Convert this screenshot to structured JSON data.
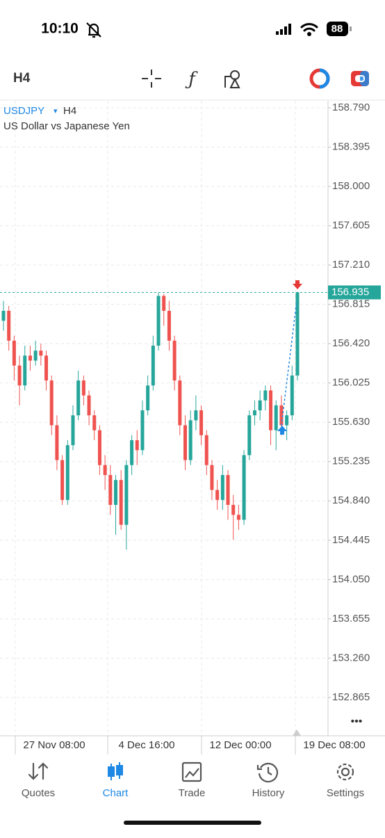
{
  "status_bar": {
    "time": "10:10",
    "battery": "88"
  },
  "toolbar": {
    "timeframe": "H4"
  },
  "chart_header": {
    "symbol": "USDJPY",
    "dropdown": "▾",
    "timeframe": "H4",
    "description": "US Dollar vs Japanese Yen"
  },
  "chart_data": {
    "type": "candlestick",
    "up_color": "#26a69a",
    "down_color": "#ef5350",
    "open": [
      156.65,
      156.75,
      156.45,
      156.2,
      156.0,
      156.3,
      156.25,
      156.35,
      156.3,
      156.05,
      155.6,
      155.25,
      154.85,
      155.4,
      155.7,
      156.05,
      155.9,
      155.7,
      155.55,
      155.2,
      155.1,
      154.8,
      155.05,
      154.6,
      155.2,
      155.45,
      155.35,
      155.75,
      156.0,
      156.4,
      156.9,
      156.75,
      156.45,
      156.05,
      155.6,
      155.25,
      155.65,
      155.75,
      155.5,
      155.2,
      154.95,
      154.85,
      155.1,
      154.8,
      154.7,
      154.65,
      155.3,
      155.7,
      155.75,
      155.85,
      155.95,
      155.55,
      155.8,
      155.6,
      155.7,
      156.1
    ],
    "high": [
      156.85,
      156.8,
      156.5,
      156.3,
      156.4,
      156.4,
      156.45,
      156.42,
      156.35,
      156.1,
      155.7,
      155.3,
      155.45,
      155.8,
      156.15,
      156.1,
      155.95,
      155.75,
      155.6,
      155.3,
      155.2,
      155.1,
      155.15,
      155.25,
      155.5,
      155.55,
      155.85,
      156.1,
      156.5,
      156.93,
      156.92,
      156.85,
      156.5,
      156.1,
      155.7,
      155.75,
      155.9,
      155.8,
      155.55,
      155.25,
      155.05,
      155.2,
      155.15,
      154.9,
      154.8,
      155.35,
      155.75,
      155.85,
      155.95,
      156.0,
      156.0,
      155.85,
      155.9,
      155.75,
      156.2,
      156.94
    ],
    "low": [
      156.55,
      156.35,
      156.05,
      155.8,
      155.95,
      156.15,
      156.2,
      156.2,
      155.95,
      155.5,
      155.15,
      154.8,
      154.8,
      155.35,
      155.65,
      155.8,
      155.6,
      155.45,
      155.1,
      154.95,
      154.7,
      154.5,
      154.55,
      154.35,
      155.1,
      155.2,
      155.3,
      155.7,
      155.95,
      156.35,
      156.6,
      156.35,
      155.95,
      155.5,
      155.15,
      155.2,
      155.55,
      155.4,
      155.1,
      154.85,
      154.75,
      154.75,
      154.65,
      154.45,
      154.55,
      154.6,
      155.25,
      155.6,
      155.65,
      155.75,
      155.4,
      155.35,
      155.5,
      155.45,
      155.65,
      156.05
    ],
    "close": [
      156.75,
      156.45,
      156.2,
      156.0,
      156.3,
      156.25,
      156.35,
      156.3,
      156.05,
      155.6,
      155.25,
      154.85,
      155.4,
      155.7,
      156.05,
      155.9,
      155.7,
      155.55,
      155.2,
      155.1,
      154.8,
      155.05,
      154.6,
      155.2,
      155.45,
      155.35,
      155.75,
      156.0,
      156.4,
      156.9,
      156.75,
      156.45,
      156.05,
      155.6,
      155.25,
      155.65,
      155.75,
      155.5,
      155.2,
      154.95,
      154.85,
      155.1,
      154.8,
      154.7,
      154.65,
      155.3,
      155.7,
      155.75,
      155.85,
      155.95,
      155.55,
      155.8,
      155.6,
      155.7,
      156.1,
      156.935
    ],
    "current_price": 156.935,
    "current_price_color": "#26a69a",
    "ylim": [
      152.48,
      158.86
    ],
    "yticks": [
      {
        "value": 158.79,
        "label": "158.790"
      },
      {
        "value": 158.395,
        "label": "158.395"
      },
      {
        "value": 158.0,
        "label": "158.000"
      },
      {
        "value": 157.605,
        "label": "157.605"
      },
      {
        "value": 157.21,
        "label": "157.210"
      },
      {
        "value": 156.815,
        "label": "156.815"
      },
      {
        "value": 156.42,
        "label": "156.420"
      },
      {
        "value": 156.025,
        "label": "156.025"
      },
      {
        "value": 155.63,
        "label": "155.630"
      },
      {
        "value": 155.235,
        "label": "155.235"
      },
      {
        "value": 154.84,
        "label": "154.840"
      },
      {
        "value": 154.445,
        "label": "154.445"
      },
      {
        "value": 154.05,
        "label": "154.050"
      },
      {
        "value": 153.655,
        "label": "153.655"
      },
      {
        "value": 153.26,
        "label": "153.260"
      },
      {
        "value": 152.865,
        "label": "152.865"
      }
    ],
    "x_labels": [
      "27 Nov 08:00",
      "4 Dec 16:00",
      "12 Dec 00:00",
      "19 Dec 08:00"
    ],
    "grid": true
  },
  "more": "•••",
  "tab_bar": [
    "Quotes",
    "Chart",
    "Trade",
    "History",
    "Settings"
  ]
}
